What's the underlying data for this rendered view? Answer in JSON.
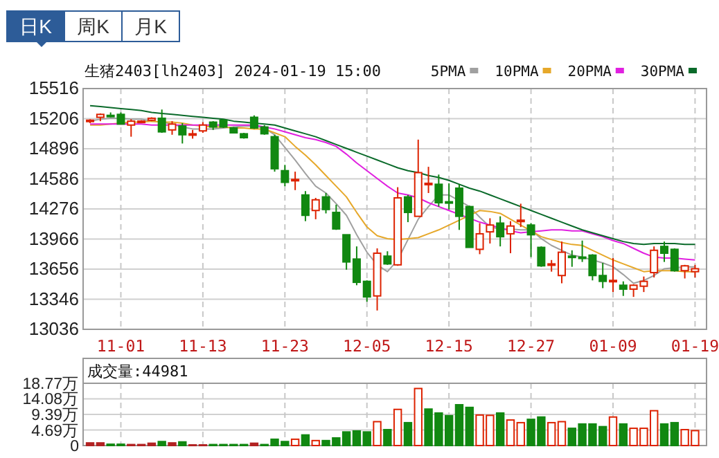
{
  "chart_data": [
    {
      "type": "candlestick",
      "title": "生猪2403[lh2403] 2024-01-19 15:00",
      "annotations": [
        "日K",
        "周K",
        "月K"
      ],
      "categories": [
        null,
        null,
        null,
        "11-01",
        null,
        null,
        null,
        null,
        null,
        null,
        null,
        "11-13",
        null,
        null,
        null,
        null,
        null,
        null,
        null,
        "11-23",
        null,
        null,
        null,
        null,
        null,
        null,
        null,
        "12-05",
        null,
        null,
        null,
        null,
        null,
        null,
        null,
        "12-15",
        null,
        null,
        null,
        null,
        null,
        null,
        null,
        "12-27",
        null,
        null,
        null,
        null,
        null,
        null,
        null,
        "01-09",
        null,
        null,
        null,
        null,
        null,
        null,
        null,
        "01-19"
      ],
      "ohlc": [
        [
          15180,
          15200,
          15160,
          15190
        ],
        [
          15220,
          15260,
          15180,
          15250
        ],
        [
          15240,
          15270,
          15220,
          15230
        ],
        [
          15250,
          15270,
          15150,
          15150
        ],
        [
          15140,
          15200,
          15020,
          15180
        ],
        [
          15170,
          15190,
          15160,
          15180
        ],
        [
          15190,
          15220,
          15180,
          15210
        ],
        [
          15210,
          15300,
          15060,
          15070
        ],
        [
          15090,
          15180,
          15040,
          15150
        ],
        [
          15130,
          15160,
          14950,
          15040
        ],
        [
          15040,
          15090,
          15000,
          15050
        ],
        [
          15080,
          15170,
          15060,
          15140
        ],
        [
          15170,
          15180,
          15090,
          15120
        ],
        [
          15190,
          15200,
          15110,
          15120
        ],
        [
          15110,
          15120,
          15060,
          15060
        ],
        [
          15050,
          15060,
          15000,
          15010
        ],
        [
          15220,
          15240,
          15100,
          15110
        ],
        [
          15120,
          15140,
          15040,
          15050
        ],
        [
          15020,
          15040,
          14660,
          14690
        ],
        [
          14670,
          14730,
          14510,
          14550
        ],
        [
          14570,
          14660,
          14470,
          14580
        ],
        [
          14420,
          14460,
          14150,
          14210
        ],
        [
          14260,
          14390,
          14170,
          14370
        ],
        [
          14400,
          14440,
          14230,
          14270
        ],
        [
          14240,
          14320,
          14060,
          14070
        ],
        [
          14010,
          14010,
          13650,
          13730
        ],
        [
          13760,
          13890,
          13490,
          13520
        ],
        [
          13530,
          13540,
          13320,
          13370
        ],
        [
          13380,
          13870,
          13230,
          13820
        ],
        [
          13790,
          13840,
          13700,
          13710
        ],
        [
          13700,
          14500,
          13690,
          14390
        ],
        [
          14400,
          14420,
          14140,
          14240
        ],
        [
          14200,
          14990,
          14200,
          14650
        ],
        [
          14530,
          14710,
          14440,
          14540
        ],
        [
          14530,
          14630,
          14300,
          14340
        ],
        [
          14350,
          14540,
          14270,
          14340
        ],
        [
          14490,
          14530,
          14060,
          14200
        ],
        [
          14300,
          14310,
          13880,
          13880
        ],
        [
          13860,
          14130,
          13810,
          14020
        ],
        [
          14040,
          14180,
          13920,
          14110
        ],
        [
          14130,
          14200,
          13890,
          13990
        ],
        [
          14020,
          14150,
          13820,
          14100
        ],
        [
          14150,
          14330,
          14090,
          14160
        ],
        [
          14110,
          14130,
          13780,
          14010
        ],
        [
          13880,
          13890,
          13680,
          13690
        ],
        [
          13700,
          13750,
          13630,
          13710
        ],
        [
          13590,
          13940,
          13510,
          13830
        ],
        [
          13790,
          13850,
          13680,
          13780
        ],
        [
          13780,
          13950,
          13730,
          13770
        ],
        [
          13800,
          13810,
          13540,
          13590
        ],
        [
          13590,
          13720,
          13460,
          13530
        ],
        [
          13530,
          13770,
          13420,
          13540
        ],
        [
          13490,
          13530,
          13380,
          13450
        ],
        [
          13450,
          13500,
          13370,
          13490
        ],
        [
          13480,
          13580,
          13420,
          13530
        ],
        [
          13620,
          13890,
          13570,
          13850
        ],
        [
          13890,
          13940,
          13730,
          13820
        ],
        [
          13860,
          13870,
          13630,
          13640
        ],
        [
          13640,
          13700,
          13560,
          13690
        ],
        [
          13630,
          13700,
          13570,
          13660
        ]
      ],
      "colors": [
        "#dd2200",
        "#dd2200",
        "#118811",
        "#118811",
        "#dd2200",
        "#dd2200",
        "#dd2200",
        "#118811",
        "#dd2200",
        "#118811",
        "#dd2200",
        "#dd2200",
        "#118811",
        "#118811",
        "#118811",
        "#118811",
        "#118811",
        "#118811",
        "#118811",
        "#118811",
        "#dd2200",
        "#118811",
        "#dd2200",
        "#118811",
        "#118811",
        "#118811",
        "#118811",
        "#118811",
        "#dd2200",
        "#118811",
        "#dd2200",
        "#118811",
        "#dd2200",
        "#dd2200",
        "#118811",
        "#118811",
        "#118811",
        "#118811",
        "#dd2200",
        "#dd2200",
        "#118811",
        "#dd2200",
        "#dd2200",
        "#118811",
        "#118811",
        "#dd2200",
        "#dd2200",
        "#118811",
        "#118811",
        "#118811",
        "#118811",
        "#dd2200",
        "#118811",
        "#dd2200",
        "#dd2200",
        "#dd2200",
        "#118811",
        "#118811",
        "#dd2200",
        "#dd2200"
      ],
      "series": [
        {
          "name": "5PMA",
          "type": "line",
          "color": "#a0a0a0",
          "values": [
            15180,
            15200,
            15210,
            15210,
            15200,
            15200,
            15180,
            15170,
            15150,
            15120,
            15100,
            15100,
            15100,
            15110,
            15120,
            15130,
            15130,
            15110,
            15040,
            14910,
            14780,
            14640,
            14510,
            14440,
            14330,
            14210,
            14010,
            13830,
            13700,
            13630,
            13750,
            13960,
            14170,
            14300,
            14420,
            14420,
            14360,
            14300,
            14190,
            14090,
            14070,
            14070,
            14060,
            14060,
            13970,
            13900,
            13850,
            13800,
            13780,
            13750,
            13720,
            13680,
            13600,
            13510,
            13540,
            13590,
            13660,
            13670,
            13680,
            13680
          ]
        },
        {
          "name": "10PMA",
          "type": "line",
          "color": "#e6a82a",
          "values": [
            15140,
            15140,
            15150,
            15160,
            15170,
            15170,
            15180,
            15170,
            15170,
            15160,
            15140,
            15130,
            15120,
            15120,
            15110,
            15110,
            15100,
            15100,
            15060,
            15020,
            14920,
            14830,
            14730,
            14620,
            14510,
            14400,
            14240,
            14090,
            14000,
            13970,
            13960,
            13970,
            13980,
            14020,
            14060,
            14110,
            14160,
            14210,
            14260,
            14250,
            14230,
            14170,
            14110,
            14050,
            13990,
            13960,
            13930,
            13910,
            13900,
            13850,
            13800,
            13750,
            13710,
            13670,
            13630,
            13640,
            13640,
            13640,
            13630,
            13630
          ]
        },
        {
          "name": "20PMA",
          "type": "line",
          "color": "#e020e0",
          "values": [
            15150,
            15150,
            15150,
            15150,
            15150,
            15150,
            15140,
            15140,
            15140,
            15140,
            15140,
            15140,
            15140,
            15140,
            15140,
            15140,
            15140,
            15120,
            15100,
            15070,
            15040,
            15010,
            14990,
            14960,
            14920,
            14840,
            14750,
            14670,
            14590,
            14510,
            14440,
            14420,
            14390,
            14340,
            14300,
            14260,
            14220,
            14180,
            14140,
            14110,
            14080,
            14050,
            14030,
            14040,
            14050,
            14060,
            14060,
            14050,
            14050,
            14020,
            13990,
            13950,
            13920,
            13870,
            13820,
            13780,
            13770,
            13770,
            13760,
            13750
          ]
        },
        {
          "name": "30PMA",
          "type": "line",
          "color": "#0a6a2a",
          "values": [
            15340,
            15330,
            15320,
            15310,
            15300,
            15290,
            15270,
            15260,
            15250,
            15240,
            15230,
            15220,
            15210,
            15200,
            15180,
            15170,
            15160,
            15150,
            15140,
            15110,
            15080,
            15050,
            15020,
            14980,
            14940,
            14900,
            14860,
            14820,
            14780,
            14740,
            14700,
            14670,
            14650,
            14620,
            14600,
            14570,
            14530,
            14490,
            14460,
            14420,
            14380,
            14340,
            14300,
            14260,
            14220,
            14180,
            14140,
            14100,
            14060,
            14030,
            14000,
            13970,
            13940,
            13920,
            13910,
            13920,
            13920,
            13920,
            13910,
            13910
          ]
        }
      ],
      "ylim": [
        13036,
        15516
      ],
      "yticks": [
        13036,
        13346,
        13656,
        13966,
        14276,
        14586,
        14896,
        15206,
        15516
      ],
      "grid": true,
      "legend": "top right"
    },
    {
      "type": "bar",
      "title": "成交量:44981",
      "categories": [
        null,
        null,
        null,
        null,
        null,
        null,
        null,
        null,
        null,
        null,
        null,
        null,
        null,
        null,
        null,
        null,
        null,
        null,
        null,
        null,
        null,
        null,
        null,
        null,
        null,
        null,
        null,
        null,
        null,
        null,
        null,
        null,
        null,
        null,
        null,
        null,
        null,
        null,
        null,
        null,
        null,
        null,
        null,
        null,
        null,
        null,
        null,
        null,
        null,
        null,
        null,
        null,
        null,
        null,
        null,
        null,
        null,
        null,
        null,
        null
      ],
      "values": [
        0.8,
        0.8,
        0.4,
        0.4,
        0.3,
        0.3,
        0.7,
        1.2,
        0.8,
        1.1,
        0.2,
        0.2,
        0.3,
        0.3,
        0.3,
        0.3,
        0.7,
        0.3,
        1.9,
        1.2,
        1.9,
        3.2,
        1.5,
        1.5,
        2.3,
        4.1,
        4.4,
        4.1,
        7.2,
        4.8,
        10.9,
        6.9,
        17.2,
        11.0,
        9.8,
        9.0,
        12.3,
        11.5,
        9.2,
        9.1,
        9.8,
        7.7,
        6.9,
        7.9,
        8.6,
        6.9,
        7.2,
        5.2,
        6.5,
        6.5,
        5.7,
        8.6,
        6.5,
        5.2,
        5.2,
        10.5,
        6.5,
        6.9,
        4.8,
        4.5
      ],
      "colors": [
        "#b22222",
        "#b22222",
        "#118811",
        "#118811",
        "#b22222",
        "#b22222",
        "#b22222",
        "#118811",
        "#b22222",
        "#118811",
        "#b22222",
        "#b22222",
        "#118811",
        "#118811",
        "#118811",
        "#118811",
        "#b22222",
        "#118811",
        "#118811",
        "#118811",
        "#dd2200",
        "#118811",
        "#dd2200",
        "#118811",
        "#118811",
        "#118811",
        "#118811",
        "#118811",
        "#dd2200",
        "#118811",
        "#dd2200",
        "#118811",
        "#dd2200",
        "#118811",
        "#118811",
        "#118811",
        "#118811",
        "#118811",
        "#dd2200",
        "#dd2200",
        "#118811",
        "#dd2200",
        "#dd2200",
        "#118811",
        "#118811",
        "#dd2200",
        "#dd2200",
        "#118811",
        "#118811",
        "#118811",
        "#118811",
        "#dd2200",
        "#118811",
        "#dd2200",
        "#dd2200",
        "#dd2200",
        "#118811",
        "#118811",
        "#dd2200",
        "#dd2200"
      ],
      "ylim": [
        0,
        18.77
      ],
      "yticks": [
        0,
        {
          "value": 4.69,
          "label": "4.69万"
        },
        {
          "value": 9.39,
          "label": "9.39万"
        },
        {
          "value": 14.08,
          "label": "14.08万"
        },
        {
          "value": 18.77,
          "label": "18.77万"
        }
      ],
      "grid": true,
      "tick_labels": "y"
    }
  ]
}
